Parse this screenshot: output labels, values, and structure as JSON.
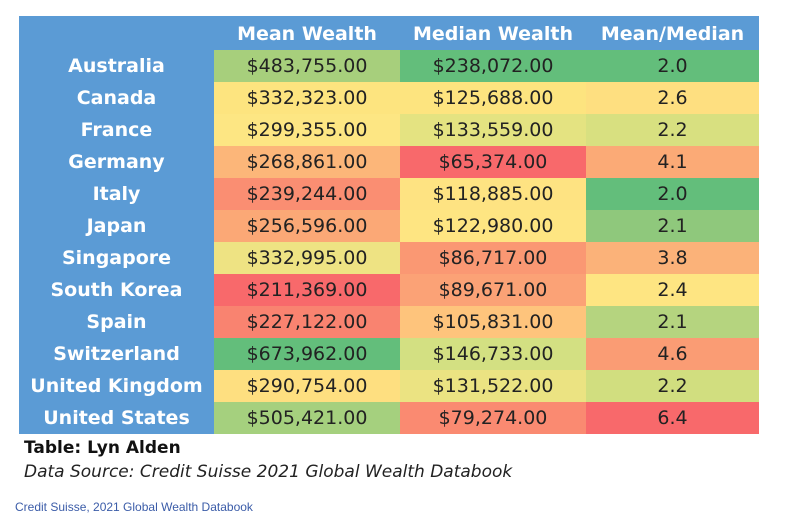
{
  "table": {
    "headers": [
      "",
      "Mean Wealth",
      "Median Wealth",
      "Mean/Median"
    ],
    "rows": [
      {
        "country": "Australia",
        "mean": "$483,755.00",
        "median": "$238,072.00",
        "ratio": "2.0",
        "colors": [
          "#a7cf7c",
          "#63be7b",
          "#63be7b"
        ]
      },
      {
        "country": "Canada",
        "mean": "$332,323.00",
        "median": "$125,688.00",
        "ratio": "2.6",
        "colors": [
          "#fde47f",
          "#fde47f",
          "#fedf80"
        ]
      },
      {
        "country": "France",
        "mean": "$299,355.00",
        "median": "$133,559.00",
        "ratio": "2.2",
        "colors": [
          "#fde683",
          "#e4e381",
          "#d8e080"
        ]
      },
      {
        "country": "Germany",
        "mean": "$268,861.00",
        "median": "$65,374.00",
        "ratio": "4.1",
        "colors": [
          "#fcb679",
          "#f8696b",
          "#fbaa76"
        ]
      },
      {
        "country": "Italy",
        "mean": "$239,244.00",
        "median": "$118,885.00",
        "ratio": "2.0",
        "colors": [
          "#fa8e72",
          "#fee382",
          "#63be7b"
        ]
      },
      {
        "country": "Japan",
        "mean": "$256,596.00",
        "median": "$122,980.00",
        "ratio": "2.1",
        "colors": [
          "#fba876",
          "#fee582",
          "#8fc87c"
        ]
      },
      {
        "country": "Singapore",
        "mean": "$332,995.00",
        "median": "$86,717.00",
        "ratio": "3.8",
        "colors": [
          "#eee383",
          "#fa9873",
          "#fbb279"
        ]
      },
      {
        "country": "South Korea",
        "mean": "$211,369.00",
        "median": "$89,671.00",
        "ratio": "2.4",
        "colors": [
          "#f8696b",
          "#fba276",
          "#fee582"
        ]
      },
      {
        "country": "Spain",
        "mean": "$227,122.00",
        "median": "$105,831.00",
        "ratio": "2.1",
        "colors": [
          "#f98370",
          "#fec47c",
          "#b5d47f"
        ]
      },
      {
        "country": "Switzerland",
        "mean": "$673,962.00",
        "median": "$146,733.00",
        "ratio": "4.6",
        "colors": [
          "#63be7b",
          "#d3e082",
          "#fa9c74"
        ]
      },
      {
        "country": "United Kingdom",
        "mean": "$290,754.00",
        "median": "$131,522.00",
        "ratio": "2.2",
        "colors": [
          "#fedf80",
          "#ebe382",
          "#d1de7f"
        ]
      },
      {
        "country": "United States",
        "mean": "$505,421.00",
        "median": "$79,274.00",
        "ratio": "6.4",
        "colors": [
          "#a5d07e",
          "#fa8a71",
          "#f8696b"
        ]
      }
    ]
  },
  "captions": {
    "author": "Table: Lyn Alden",
    "source": "Data Source: Credit Suisse 2021 Global Wealth Databook"
  },
  "link_text": "Credit Suisse, 2021 Global Wealth Databook",
  "colors": {
    "header_bg": "#5b9bd5",
    "link": "#3b5ca8"
  }
}
